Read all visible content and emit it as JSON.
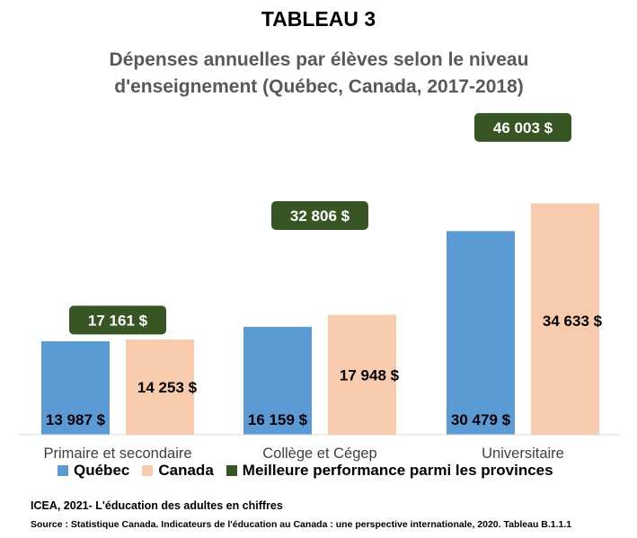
{
  "title": "TABLEAU 3",
  "subtitle_line1": "Dépenses annuelles par élèves selon le niveau",
  "subtitle_line2": "d'enseignement (Québec, Canada, 2017-2018)",
  "chart_data": {
    "type": "bar",
    "categories": [
      "Primaire et secondaire",
      "Collège et Cégep",
      "Universitaire"
    ],
    "series": [
      {
        "name": "Québec",
        "values": [
          13987,
          16159,
          30479
        ],
        "labels": [
          "13 987  $",
          "16 159  $",
          "30 479  $"
        ],
        "color": "#5B9BD5"
      },
      {
        "name": "Canada",
        "values": [
          14253,
          17948,
          34633
        ],
        "labels": [
          "14 253  $",
          "17 948  $",
          "34 633  $"
        ],
        "color": "#F8CBAD"
      }
    ],
    "best_performance": {
      "name": "Meilleure performance parmi les provinces",
      "values": [
        17161,
        32806,
        46003
      ],
      "labels": [
        "17 161  $",
        "32 806  $",
        "46 003  $"
      ],
      "color": "#375623"
    },
    "ylim": [
      0,
      50000
    ],
    "grid": false,
    "legend_position": "bottom"
  },
  "legend": {
    "quebec": "Québec",
    "canada": "Canada",
    "best": "Meilleure performance parmi les provinces"
  },
  "footer": {
    "line1": "ICEA, 2021- L'éducation des adultes en chiffres",
    "line2": "Source : Statistique Canada.  Indicateurs de l'éducation au Canada : une perspective internationale,  2020. Tableau B.1.1.1"
  }
}
